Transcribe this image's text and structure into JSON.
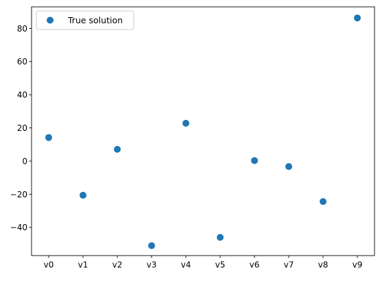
{
  "chart_data": {
    "type": "scatter",
    "categories": [
      "v0",
      "v1",
      "v2",
      "v3",
      "v4",
      "v5",
      "v6",
      "v7",
      "v8",
      "v9"
    ],
    "series": [
      {
        "name": "True solution",
        "color": "#1f77b4",
        "marker": "circle",
        "values": [
          14.2,
          -20.6,
          7.1,
          -51.0,
          22.8,
          -46.0,
          0.3,
          -3.3,
          -24.4,
          86.3
        ]
      }
    ],
    "y_ticks": [
      -40,
      -20,
      0,
      20,
      40,
      60,
      80
    ],
    "ylim": [
      -57,
      93
    ],
    "grid": false,
    "legend": {
      "position": "upper-left",
      "entries": [
        "True solution"
      ]
    }
  }
}
